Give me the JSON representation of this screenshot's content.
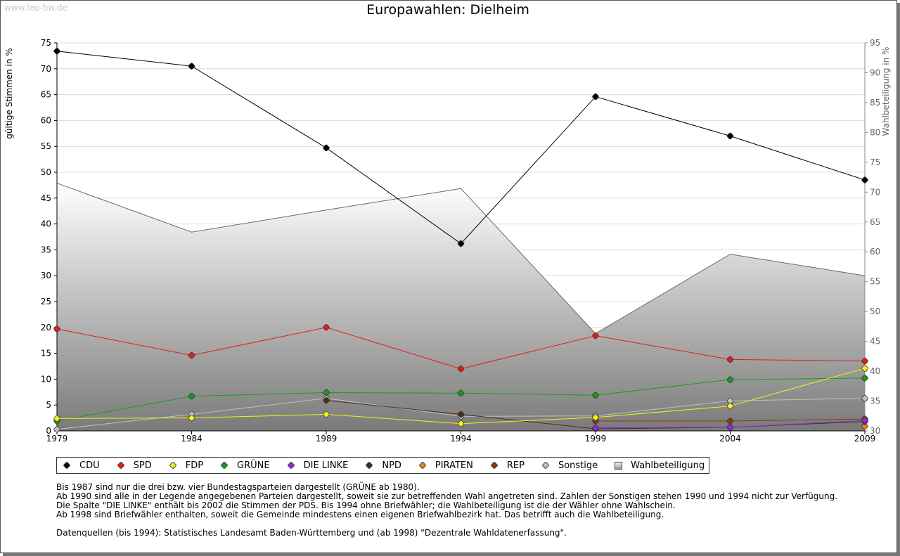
{
  "watermark": "www.leo-bw.de",
  "chart_data": {
    "type": "line",
    "title": "Europawahlen: Dielheim",
    "ylabel": "gültige Stimmen in %",
    "y2label": "Wahlbeteiligung in %",
    "ylim": [
      0,
      75
    ],
    "y2lim": [
      30,
      95
    ],
    "yticks": [
      0,
      5,
      10,
      15,
      20,
      25,
      30,
      35,
      40,
      45,
      50,
      55,
      60,
      65,
      70,
      75
    ],
    "y2ticks": [
      30,
      35,
      40,
      45,
      50,
      55,
      60,
      65,
      70,
      75,
      80,
      85,
      90,
      95
    ],
    "x": [
      "1979",
      "1984",
      "1989",
      "1994",
      "1999",
      "2004",
      "2009"
    ],
    "grid": true,
    "legend_position": "bottom",
    "series": [
      {
        "name": "CDU",
        "color": "#000000",
        "values": [
          73.4,
          70.5,
          54.7,
          36.2,
          64.6,
          57.0,
          48.5
        ]
      },
      {
        "name": "SPD",
        "color": "#e31b1b",
        "values": [
          19.7,
          14.6,
          20.0,
          12.0,
          18.4,
          13.8,
          13.5
        ]
      },
      {
        "name": "FDP",
        "color": "#f5f21a",
        "values": [
          2.4,
          2.5,
          3.2,
          1.4,
          2.6,
          4.8,
          12.1
        ]
      },
      {
        "name": "GRÜNE",
        "color": "#1c9a1c",
        "values": [
          1.9,
          6.7,
          7.4,
          7.3,
          6.9,
          9.9,
          10.2
        ]
      },
      {
        "name": "DIE LINKE",
        "color": "#8a2be2",
        "values": [
          null,
          null,
          null,
          null,
          0.6,
          0.7,
          2.0
        ]
      },
      {
        "name": "NPD",
        "color": "#4a2e1a",
        "values": [
          null,
          null,
          5.9,
          3.2,
          0.4,
          0.7,
          1.8
        ]
      },
      {
        "name": "PIRATEN",
        "color": "#f07f14",
        "values": [
          null,
          null,
          null,
          null,
          null,
          null,
          0.9
        ]
      },
      {
        "name": "REP",
        "color": "#8b3a0f",
        "values": [
          null,
          null,
          null,
          null,
          1.9,
          1.9,
          2.3
        ]
      },
      {
        "name": "Sonstige",
        "color": "#c0c0c0",
        "values": [
          0.3,
          3.2,
          6.3,
          2.8,
          2.9,
          5.8,
          6.3
        ]
      }
    ],
    "area_series": {
      "name": "Wahlbeteiligung",
      "axis": "right",
      "values": [
        71.5,
        63.3,
        67.0,
        70.6,
        46.3,
        59.6,
        56.0
      ]
    }
  },
  "notes": [
    "Bis 1987 sind nur die drei bzw. vier Bundestagsparteien dargestellt (GRÜNE ab 1980).",
    "Ab 1990 sind alle in der Legende angegebenen Parteien dargestellt, soweit sie zur betreffenden Wahl angetreten sind. Zahlen der Sonstigen stehen 1990 und 1994 nicht zur Verfügung.",
    "Die Spalte \"DIE LINKE\" enthält bis 2002 die Stimmen der PDS. Bis 1994 ohne Briefwähler; die Wahlbeteiligung ist die der Wähler ohne Wahlschein.",
    "Ab 1998 sind Briefwähler enthalten, soweit die Gemeinde mindestens einen eigenen Briefwahlbezirk hat. Das betrifft auch die Wahlbeteiligung."
  ],
  "source_note": "Datenquellen (bis 1994): Statistisches Landesamt Baden-Württemberg und (ab 1998) \"Dezentrale Wahldatenerfassung\"."
}
